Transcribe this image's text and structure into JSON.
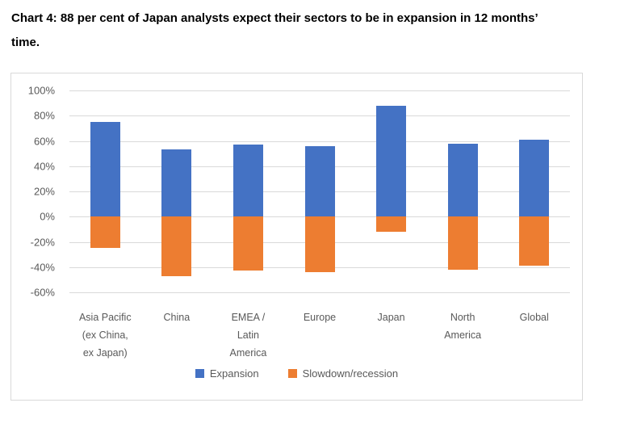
{
  "title": "Chart 4: 88 per cent of Japan analysts expect their sectors to be in expansion in 12 months’\ntime.",
  "colors": {
    "expansion": "#4472C4",
    "slowdown": "#ED7D31",
    "gridline": "#D9D9D9",
    "frame_border": "#D9D9D9",
    "axis_text": "#595959",
    "title_text": "#000000",
    "background": "#FFFFFF"
  },
  "chart_data": {
    "type": "bar",
    "stacked": true,
    "title": "Chart 4: 88 per cent of Japan analysts expect their sectors to be in expansion in 12 months’ time.",
    "categories": [
      "Asia Pacific (ex China, ex Japan)",
      "China",
      "EMEA / Latin America",
      "Europe",
      "Japan",
      "North America",
      "Global"
    ],
    "category_tick_labels": [
      "Asia Pacific\n(ex China,\nex Japan)",
      "China",
      "EMEA /\nLatin\nAmerica",
      "Europe",
      "Japan",
      "North\nAmerica",
      "Global"
    ],
    "series": [
      {
        "name": "Expansion",
        "color": "#4472C4",
        "values": [
          75,
          53,
          57,
          56,
          88,
          58,
          61
        ]
      },
      {
        "name": "Slowdown/recession",
        "color": "#ED7D31",
        "values": [
          -25,
          -47,
          -43,
          -44,
          -12,
          -42,
          -39
        ]
      }
    ],
    "xlabel": "",
    "ylabel": "",
    "ylim": [
      -60,
      100
    ],
    "y_tick_step": 20,
    "y_ticks": [
      "100%",
      "80%",
      "60%",
      "40%",
      "20%",
      "0%",
      "-20%",
      "-40%",
      "-60%"
    ],
    "grid": true,
    "legend_position": "bottom"
  }
}
